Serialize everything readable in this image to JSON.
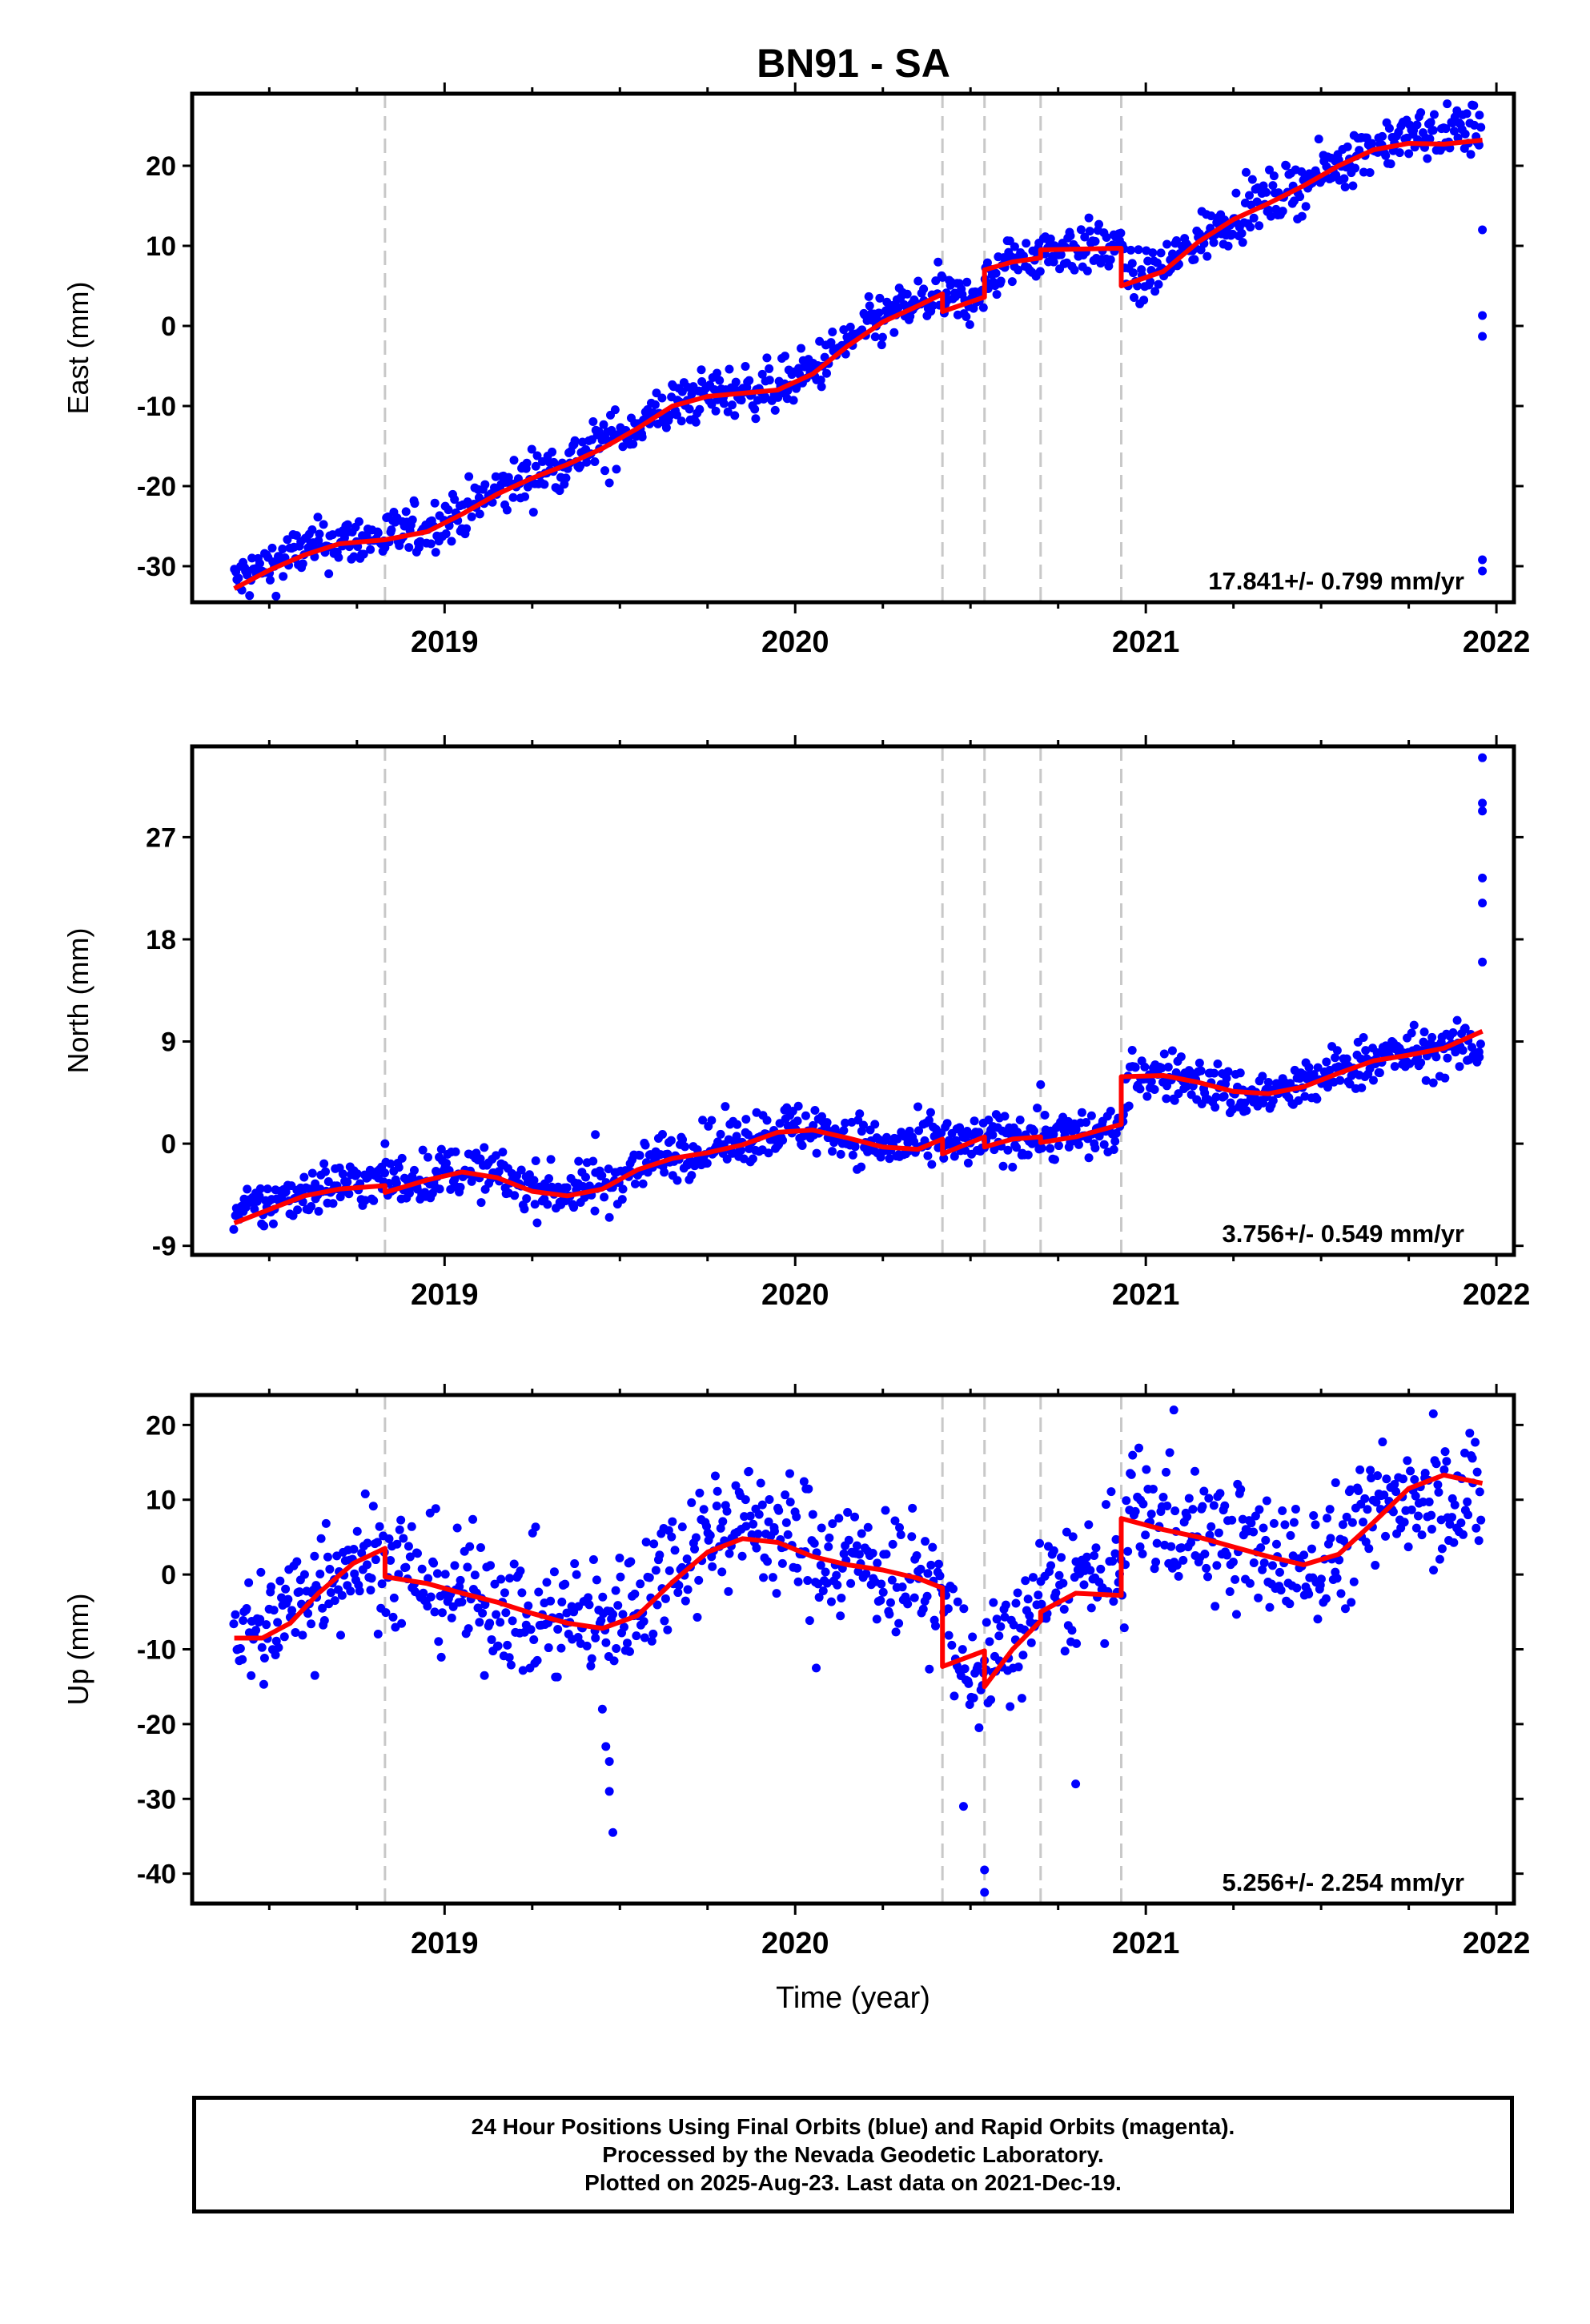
{
  "title": "BN91 - SA",
  "footer_lines": [
    "24 Hour Positions Using Final Orbits (blue) and Rapid Orbits (magenta).",
    "Processed by the Nevada Geodetic Laboratory.",
    "Plotted on 2025-Aug-23. Last data on 2021-Dec-19."
  ],
  "colors": {
    "points": "#0000ff",
    "model": "#ff0000",
    "events": "#c8c8c8",
    "frame": "#000000"
  },
  "chart_data": [
    {
      "type": "scatter",
      "panel": "east",
      "ylabel": "East (mm)",
      "xlabel": "",
      "xlim": [
        2018.28,
        2022.05
      ],
      "ylim": [
        -34.5,
        29
      ],
      "yticks": [
        -30,
        -20,
        -10,
        0,
        10,
        20
      ],
      "xticks": [
        2019,
        2020,
        2021,
        2022
      ],
      "event_lines": [
        2018.83,
        2020.42,
        2020.54,
        2020.7,
        2020.93
      ],
      "rate_text": "17.841+/- 0.799 mm/yr",
      "model_series": [
        [
          2018.4,
          -32.8
        ],
        [
          2018.5,
          -30.5
        ],
        [
          2018.6,
          -28.6
        ],
        [
          2018.7,
          -27.2
        ],
        [
          2018.83,
          -26.7
        ],
        [
          2018.95,
          -25.7
        ],
        [
          2019.05,
          -23.5
        ],
        [
          2019.15,
          -21.0
        ],
        [
          2019.25,
          -19.0
        ],
        [
          2019.35,
          -17.3
        ],
        [
          2019.45,
          -15.3
        ],
        [
          2019.55,
          -12.8
        ],
        [
          2019.65,
          -10.0
        ],
        [
          2019.75,
          -8.8
        ],
        [
          2019.85,
          -8.4
        ],
        [
          2019.95,
          -8.0
        ],
        [
          2020.05,
          -6.0
        ],
        [
          2020.15,
          -2.5
        ],
        [
          2020.25,
          0.5
        ],
        [
          2020.35,
          2.5
        ],
        [
          2020.42,
          4.0
        ],
        [
          2020.42,
          1.8
        ],
        [
          2020.54,
          3.6
        ],
        [
          2020.54,
          7.0
        ],
        [
          2020.62,
          8.0
        ],
        [
          2020.7,
          8.5
        ],
        [
          2020.7,
          9.5
        ],
        [
          2020.93,
          9.7
        ],
        [
          2020.93,
          5.0
        ],
        [
          2021.05,
          6.8
        ],
        [
          2021.15,
          10.5
        ],
        [
          2021.25,
          13.3
        ],
        [
          2021.35,
          15.3
        ],
        [
          2021.45,
          17.5
        ],
        [
          2021.55,
          20.0
        ],
        [
          2021.65,
          22.0
        ],
        [
          2021.75,
          22.8
        ],
        [
          2021.85,
          22.7
        ],
        [
          2021.96,
          23.2
        ]
      ],
      "point_centers": [
        [
          2018.4,
          -32.0
        ],
        [
          2018.5,
          -29.9
        ],
        [
          2018.6,
          -27.9
        ],
        [
          2018.7,
          -26.9
        ],
        [
          2018.83,
          -26.4
        ],
        [
          2018.95,
          -25.2
        ],
        [
          2019.05,
          -23.2
        ],
        [
          2019.15,
          -20.8
        ],
        [
          2019.25,
          -18.7
        ],
        [
          2019.35,
          -16.9
        ],
        [
          2019.45,
          -14.6
        ],
        [
          2019.55,
          -12.4
        ],
        [
          2019.65,
          -10.0
        ],
        [
          2019.75,
          -8.6
        ],
        [
          2019.85,
          -8.1
        ],
        [
          2019.95,
          -7.6
        ],
        [
          2020.05,
          -5.6
        ],
        [
          2020.15,
          -2.0
        ],
        [
          2020.25,
          0.9
        ],
        [
          2020.35,
          2.8
        ],
        [
          2020.42,
          3.8
        ],
        [
          2020.48,
          2.8
        ],
        [
          2020.54,
          5.0
        ],
        [
          2020.62,
          8.2
        ],
        [
          2020.7,
          9.2
        ],
        [
          2020.8,
          9.8
        ],
        [
          2020.93,
          9.7
        ],
        [
          2020.96,
          5.5
        ],
        [
          2021.05,
          7.2
        ],
        [
          2021.15,
          10.8
        ],
        [
          2021.25,
          13.7
        ],
        [
          2021.35,
          15.8
        ],
        [
          2021.45,
          17.7
        ],
        [
          2021.55,
          20.3
        ],
        [
          2021.65,
          22.6
        ],
        [
          2021.75,
          23.6
        ],
        [
          2021.85,
          24.2
        ],
        [
          2021.96,
          24.8
        ]
      ],
      "point_spread": 1.6,
      "outliers": [
        [
          2019.47,
          -19.6
        ],
        [
          2021.96,
          12.0
        ],
        [
          2021.96,
          1.3
        ],
        [
          2021.96,
          -1.3
        ],
        [
          2021.96,
          -29.2
        ],
        [
          2021.96,
          -30.6
        ]
      ]
    },
    {
      "type": "scatter",
      "panel": "north",
      "ylabel": "North (mm)",
      "xlabel": "",
      "xlim": [
        2018.28,
        2022.05
      ],
      "ylim": [
        -9.8,
        35
      ],
      "yticks": [
        -9,
        0,
        9,
        18,
        27
      ],
      "xticks": [
        2019,
        2020,
        2021,
        2022
      ],
      "event_lines": [
        2018.83,
        2020.42,
        2020.54,
        2020.7,
        2020.93
      ],
      "rate_text": "3.756+/- 0.549 mm/yr",
      "model_series": [
        [
          2018.4,
          -7.0
        ],
        [
          2018.5,
          -5.8
        ],
        [
          2018.6,
          -4.6
        ],
        [
          2018.7,
          -4.0
        ],
        [
          2018.83,
          -3.7
        ],
        [
          2018.83,
          -4.3
        ],
        [
          2018.95,
          -3.2
        ],
        [
          2019.05,
          -2.5
        ],
        [
          2019.15,
          -3.0
        ],
        [
          2019.25,
          -4.2
        ],
        [
          2019.35,
          -4.6
        ],
        [
          2019.45,
          -4.0
        ],
        [
          2019.55,
          -2.3
        ],
        [
          2019.65,
          -1.3
        ],
        [
          2019.75,
          -0.8
        ],
        [
          2019.85,
          -0.1
        ],
        [
          2019.95,
          1.0
        ],
        [
          2020.05,
          1.2
        ],
        [
          2020.15,
          0.5
        ],
        [
          2020.25,
          -0.3
        ],
        [
          2020.35,
          -0.5
        ],
        [
          2020.42,
          0.4
        ],
        [
          2020.42,
          -0.9
        ],
        [
          2020.54,
          0.6
        ],
        [
          2020.54,
          -0.3
        ],
        [
          2020.62,
          0.4
        ],
        [
          2020.7,
          0.6
        ],
        [
          2020.7,
          0.1
        ],
        [
          2020.8,
          0.6
        ],
        [
          2020.93,
          1.7
        ],
        [
          2020.93,
          5.9
        ],
        [
          2021.05,
          6.0
        ],
        [
          2021.15,
          5.4
        ],
        [
          2021.25,
          4.6
        ],
        [
          2021.35,
          4.4
        ],
        [
          2021.45,
          5.0
        ],
        [
          2021.55,
          6.2
        ],
        [
          2021.65,
          7.3
        ],
        [
          2021.75,
          7.8
        ],
        [
          2021.85,
          8.4
        ],
        [
          2021.96,
          9.9
        ]
      ],
      "point_centers": [
        [
          2018.4,
          -6.3
        ],
        [
          2018.5,
          -5.3
        ],
        [
          2018.6,
          -4.1
        ],
        [
          2018.7,
          -3.6
        ],
        [
          2018.83,
          -3.3
        ],
        [
          2018.95,
          -2.9
        ],
        [
          2019.05,
          -2.2
        ],
        [
          2019.15,
          -2.8
        ],
        [
          2019.25,
          -3.9
        ],
        [
          2019.35,
          -4.2
        ],
        [
          2019.45,
          -3.7
        ],
        [
          2019.55,
          -1.9
        ],
        [
          2019.65,
          -0.9
        ],
        [
          2019.75,
          -0.3
        ],
        [
          2019.85,
          0.4
        ],
        [
          2019.95,
          1.3
        ],
        [
          2020.05,
          1.4
        ],
        [
          2020.15,
          0.7
        ],
        [
          2020.25,
          -0.3
        ],
        [
          2020.35,
          -0.1
        ],
        [
          2020.42,
          0.2
        ],
        [
          2020.48,
          -0.3
        ],
        [
          2020.54,
          0.4
        ],
        [
          2020.62,
          0.7
        ],
        [
          2020.7,
          0.8
        ],
        [
          2020.8,
          0.7
        ],
        [
          2020.93,
          1.3
        ],
        [
          2020.96,
          6.2
        ],
        [
          2021.05,
          6.1
        ],
        [
          2021.15,
          5.5
        ],
        [
          2021.25,
          4.4
        ],
        [
          2021.35,
          4.3
        ],
        [
          2021.45,
          5.0
        ],
        [
          2021.55,
          6.5
        ],
        [
          2021.65,
          7.5
        ],
        [
          2021.75,
          7.9
        ],
        [
          2021.85,
          8.2
        ],
        [
          2021.96,
          8.6
        ]
      ],
      "point_spread": 1.1,
      "outliers": [
        [
          2018.83,
          0.0
        ],
        [
          2019.43,
          0.8
        ],
        [
          2019.47,
          -6.5
        ],
        [
          2020.7,
          5.2
        ],
        [
          2021.96,
          34.0
        ],
        [
          2021.96,
          30.0
        ],
        [
          2021.96,
          29.3
        ],
        [
          2021.96,
          23.4
        ],
        [
          2021.96,
          21.2
        ],
        [
          2021.96,
          16.0
        ]
      ]
    },
    {
      "type": "scatter",
      "panel": "up",
      "ylabel": "Up (mm)",
      "xlabel": "Time (year)",
      "xlim": [
        2018.28,
        2022.05
      ],
      "ylim": [
        -44,
        24
      ],
      "yticks": [
        -40,
        -30,
        -20,
        -10,
        0,
        10,
        20
      ],
      "xticks": [
        2019,
        2020,
        2021,
        2022
      ],
      "event_lines": [
        2018.83,
        2020.42,
        2020.54,
        2020.7,
        2020.93
      ],
      "rate_text": "5.256+/- 2.254 mm/yr",
      "model_series": [
        [
          2018.4,
          -8.5
        ],
        [
          2018.48,
          -8.5
        ],
        [
          2018.56,
          -6.5
        ],
        [
          2018.64,
          -2.5
        ],
        [
          2018.74,
          1.5
        ],
        [
          2018.83,
          3.5
        ],
        [
          2018.83,
          -0.3
        ],
        [
          2018.95,
          -1.2
        ],
        [
          2019.05,
          -2.5
        ],
        [
          2019.15,
          -3.7
        ],
        [
          2019.25,
          -5.2
        ],
        [
          2019.35,
          -6.5
        ],
        [
          2019.45,
          -7.2
        ],
        [
          2019.55,
          -5.5
        ],
        [
          2019.65,
          -1.0
        ],
        [
          2019.75,
          3.0
        ],
        [
          2019.85,
          4.8
        ],
        [
          2019.95,
          4.3
        ],
        [
          2020.05,
          2.4
        ],
        [
          2020.15,
          1.3
        ],
        [
          2020.25,
          0.6
        ],
        [
          2020.35,
          -0.5
        ],
        [
          2020.42,
          -1.8
        ],
        [
          2020.42,
          -12.3
        ],
        [
          2020.54,
          -10.2
        ],
        [
          2020.54,
          -15.0
        ],
        [
          2020.62,
          -10.0
        ],
        [
          2020.7,
          -6.2
        ],
        [
          2020.7,
          -5.0
        ],
        [
          2020.8,
          -2.5
        ],
        [
          2020.93,
          -2.8
        ],
        [
          2020.93,
          7.5
        ],
        [
          2021.05,
          6.0
        ],
        [
          2021.15,
          5.0
        ],
        [
          2021.25,
          3.7
        ],
        [
          2021.35,
          2.4
        ],
        [
          2021.45,
          1.3
        ],
        [
          2021.55,
          2.7
        ],
        [
          2021.65,
          7.0
        ],
        [
          2021.75,
          11.5
        ],
        [
          2021.85,
          13.3
        ],
        [
          2021.96,
          12.2
        ]
      ],
      "point_centers": [
        [
          2018.4,
          -8.0
        ],
        [
          2018.48,
          -7.5
        ],
        [
          2018.56,
          -4.5
        ],
        [
          2018.64,
          -0.5
        ],
        [
          2018.74,
          2.5
        ],
        [
          2018.83,
          2.0
        ],
        [
          2018.95,
          -1.0
        ],
        [
          2019.05,
          -2.5
        ],
        [
          2019.15,
          -3.8
        ],
        [
          2019.25,
          -5.5
        ],
        [
          2019.35,
          -6.2
        ],
        [
          2019.45,
          -6.5
        ],
        [
          2019.55,
          -3.5
        ],
        [
          2019.65,
          2.0
        ],
        [
          2019.75,
          5.5
        ],
        [
          2019.85,
          7.5
        ],
        [
          2019.95,
          5.5
        ],
        [
          2020.05,
          3.5
        ],
        [
          2020.15,
          2.0
        ],
        [
          2020.25,
          1.0
        ],
        [
          2020.35,
          -0.5
        ],
        [
          2020.42,
          -3.0
        ],
        [
          2020.48,
          -12.0
        ],
        [
          2020.54,
          -14.0
        ],
        [
          2020.62,
          -9.0
        ],
        [
          2020.7,
          -3.0
        ],
        [
          2020.8,
          -1.0
        ],
        [
          2020.93,
          0.0
        ],
        [
          2020.96,
          9.5
        ],
        [
          2021.05,
          7.0
        ],
        [
          2021.15,
          6.0
        ],
        [
          2021.25,
          4.0
        ],
        [
          2021.35,
          2.5
        ],
        [
          2021.45,
          1.0
        ],
        [
          2021.55,
          3.5
        ],
        [
          2021.65,
          8.0
        ],
        [
          2021.75,
          11.5
        ],
        [
          2021.85,
          11.0
        ],
        [
          2021.96,
          10.5
        ]
      ],
      "point_spread": 4.2,
      "outliers": [
        [
          2019.45,
          -18.0
        ],
        [
          2019.46,
          -23.0
        ],
        [
          2019.47,
          -25.0
        ],
        [
          2019.47,
          -29.0
        ],
        [
          2019.48,
          -34.5
        ],
        [
          2018.63,
          -13.5
        ],
        [
          2020.06,
          -12.5
        ],
        [
          2020.54,
          -39.5
        ],
        [
          2020.54,
          -42.5
        ],
        [
          2020.48,
          -31.0
        ],
        [
          2020.8,
          -28.0
        ],
        [
          2021.82,
          21.5
        ],
        [
          2021.08,
          22.0
        ]
      ]
    }
  ]
}
